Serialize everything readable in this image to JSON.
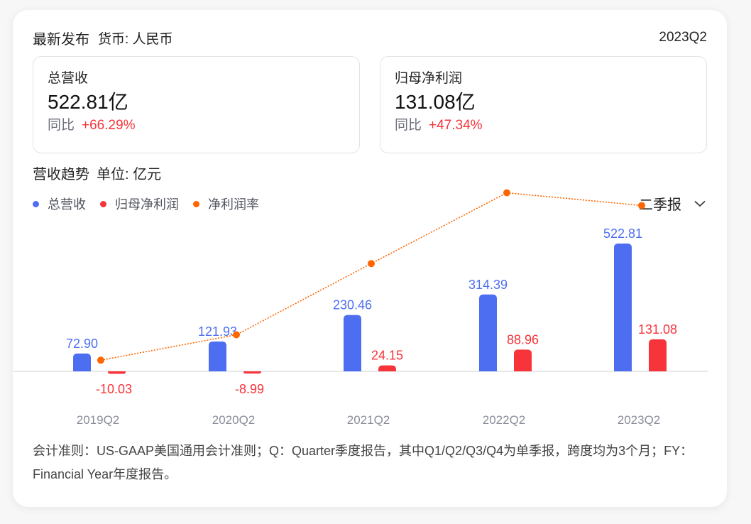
{
  "header": {
    "title": "最新发布",
    "currency": "货币: 人民币",
    "period": "2023Q2"
  },
  "kpis": [
    {
      "label": "总营收",
      "value": "522.81亿",
      "yoy_label": "同比",
      "yoy_value": "+66.29%"
    },
    {
      "label": "归母净利润",
      "value": "131.08亿",
      "yoy_label": "同比",
      "yoy_value": "+47.34%"
    }
  ],
  "trend": {
    "title": "营收趋势",
    "unit": "单位: 亿元",
    "period_select": "二季报"
  },
  "legend": [
    {
      "label": "总营收",
      "color": "#4e6ef2"
    },
    {
      "label": "归母净利润",
      "color": "#f6343a"
    },
    {
      "label": "净利润率",
      "color": "#ff6600"
    }
  ],
  "colors": {
    "revenue": "#4e6ef2",
    "profit": "#f6343a",
    "margin": "#ff6600",
    "axis_label": "#8a8d99",
    "baseline": "#e0e0e4"
  },
  "chart_data": {
    "type": "bar",
    "title": "营收趋势",
    "ylabel": "亿元",
    "categories": [
      "2019Q2",
      "2020Q2",
      "2021Q2",
      "2022Q2",
      "2023Q2"
    ],
    "series": [
      {
        "name": "总营收",
        "type": "bar",
        "values": [
          72.9,
          121.93,
          230.46,
          314.39,
          522.81
        ],
        "labels": [
          "72.90",
          "121.93",
          "230.46",
          "314.39",
          "522.81"
        ]
      },
      {
        "name": "归母净利润",
        "type": "bar",
        "values": [
          -10.03,
          -8.99,
          24.15,
          88.96,
          131.08
        ],
        "labels": [
          "-10.03",
          "-8.99",
          "24.15",
          "88.96",
          "131.08"
        ]
      },
      {
        "name": "净利润率",
        "type": "line",
        "values": [
          -13.8,
          -7.4,
          10.5,
          28.3,
          25.1
        ],
        "note": "approximate, no axis shown"
      }
    ],
    "legend_position": "top-left",
    "grid": false
  },
  "footnote": "会计准则：US-GAAP美国通用会计准则；Q：Quarter季度报告，其中Q1/Q2/Q3/Q4为单季报，跨度均为3个月；FY：Financial Year年度报告。"
}
